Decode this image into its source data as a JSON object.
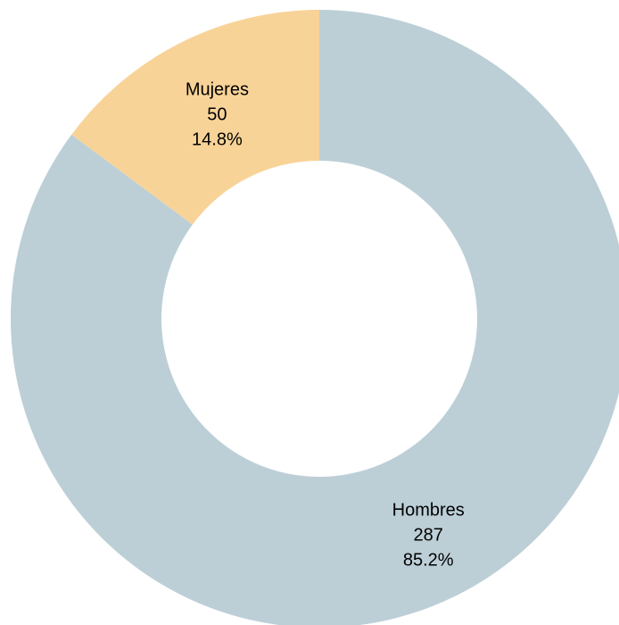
{
  "chart_data": {
    "type": "pie",
    "donut": true,
    "title": "",
    "legend": "none",
    "slices": [
      {
        "label": "Hombres",
        "value": 287,
        "percent_text": "85.2%",
        "color": "#bccfd6"
      },
      {
        "label": "Mujeres",
        "value": 50,
        "percent_text": "14.8%",
        "color": "#f8d398"
      }
    ]
  }
}
